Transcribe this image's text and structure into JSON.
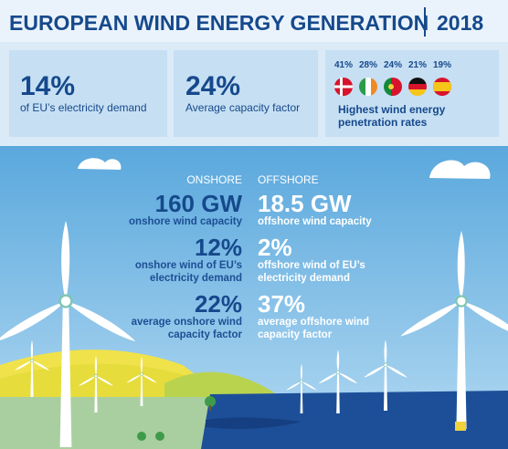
{
  "header": {
    "title": "EUROPEAN WIND ENERGY GENERATION",
    "year": "2018"
  },
  "stats": [
    {
      "value": "14%",
      "label": "of EU’s electricity demand"
    },
    {
      "value": "24%",
      "label": "Average capacity factor"
    }
  ],
  "penetration": {
    "rates": [
      "41%",
      "28%",
      "24%",
      "21%",
      "19%"
    ],
    "label": "Highest wind energy penetration rates"
  },
  "onshore": {
    "heading": "ONSHORE",
    "items": [
      {
        "value": "160 GW",
        "label": "onshore wind capacity"
      },
      {
        "value": "12%",
        "label": "onshore wind of EU’s electricity demand"
      },
      {
        "value": "22%",
        "label": "average onshore wind capacity factor"
      }
    ]
  },
  "offshore": {
    "heading": "OFFSHORE",
    "items": [
      {
        "value": "18.5 GW",
        "label": "offshore wind capacity"
      },
      {
        "value": "2%",
        "label": "offshore wind of EU’s electricity demand"
      },
      {
        "value": "37%",
        "label": "average offshore wind capacity factor"
      }
    ]
  }
}
